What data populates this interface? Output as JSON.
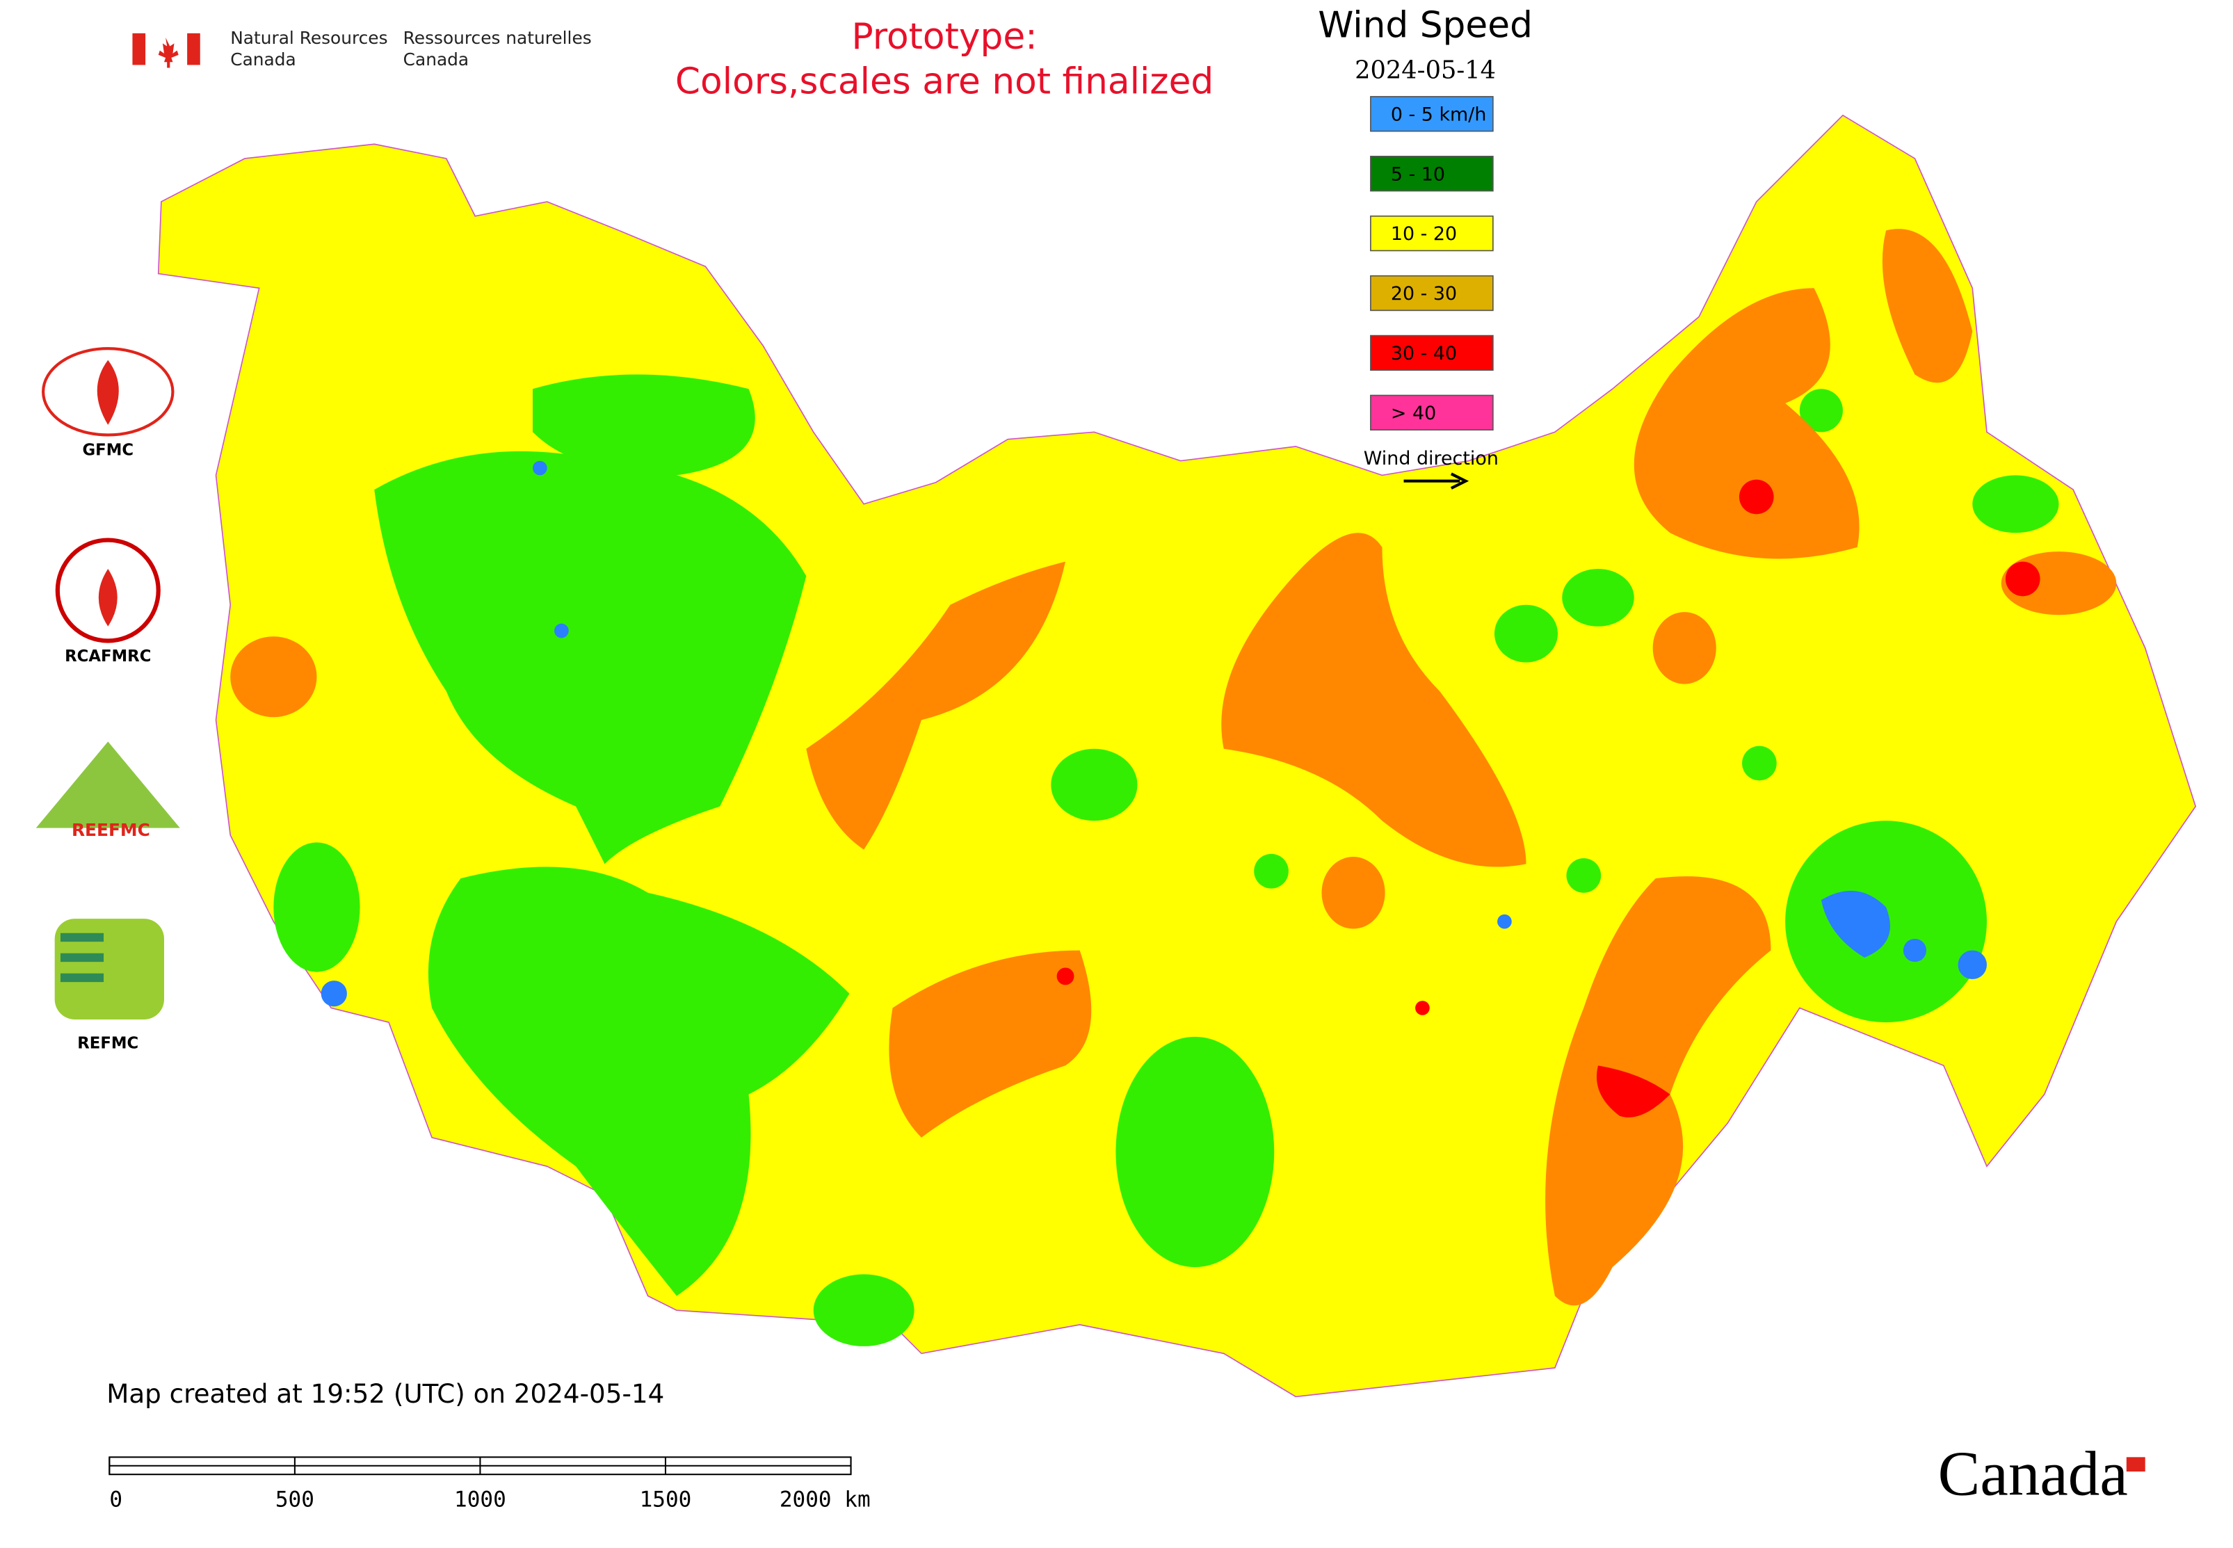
{
  "header": {
    "org_en_1": "Natural Resources",
    "org_en_2": "Canada",
    "org_fr_1": "Ressources naturelles",
    "org_fr_2": "Canada",
    "notice_1": "Prototype:",
    "notice_2": "Colors,scales are not finalized"
  },
  "legend": {
    "title": "Wind Speed",
    "date": "2024-05-14",
    "items": [
      {
        "label": "0 - 5 km/h",
        "color": "#3399ff"
      },
      {
        "label": "5 - 10",
        "color": "#008000"
      },
      {
        "label": "10 - 20",
        "color": "#ffff00"
      },
      {
        "label": "20 - 30",
        "color": "#ddb000"
      },
      {
        "label": "30 - 40",
        "color": "#ff0000"
      },
      {
        "label": "> 40",
        "color": "#ff3399"
      }
    ],
    "direction_label": "Wind direction"
  },
  "logos": [
    "GFMC",
    "RCAFMRC",
    "REEFMC",
    "REFMC"
  ],
  "footer": {
    "created": "Map created at 19:52 (UTC) on 2024-05-14",
    "scale_labels": [
      "0",
      "500",
      "1000",
      "1500",
      "2000 km"
    ],
    "wordmark": "Canada"
  }
}
